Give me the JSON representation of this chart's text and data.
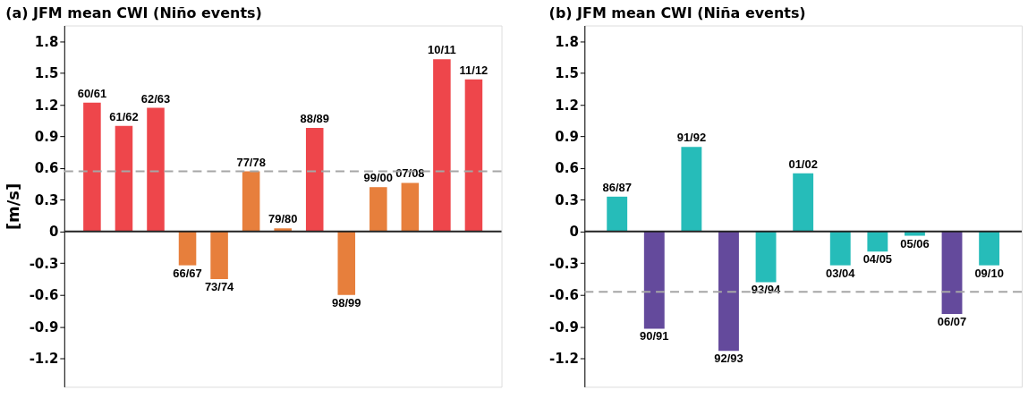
{
  "chart_data": [
    {
      "type": "bar",
      "title": "(a)  JFM mean CWI (Niño events)",
      "ylabel": "[m/s]",
      "categories": [
        "60/61",
        "61/62",
        "62/63",
        "66/67",
        "73/74",
        "77/78",
        "79/80",
        "88/89",
        "98/99",
        "99/00",
        "07/08",
        "10/11",
        "11/12"
      ],
      "values": [
        1.22,
        1.0,
        1.17,
        -0.32,
        -0.45,
        0.57,
        0.03,
        0.98,
        -0.6,
        0.42,
        0.46,
        1.63,
        1.44
      ],
      "colors": [
        "#ee464b",
        "#ee464b",
        "#ee464b",
        "#e77f3c",
        "#e77f3c",
        "#e77f3c",
        "#e77f3c",
        "#ee464b",
        "#e77f3c",
        "#e77f3c",
        "#e77f3c",
        "#ee464b",
        "#ee464b"
      ],
      "ylim": [
        -1.47,
        1.95
      ],
      "yticks": [
        -1.2,
        -0.9,
        -0.6,
        -0.3,
        0,
        0.3,
        0.6,
        0.9,
        1.2,
        1.5,
        1.8
      ],
      "ref_lines": [
        {
          "axis": "y",
          "value": 0.57,
          "color": "#a6a6a6",
          "line_style": "dashed"
        },
        {
          "axis": "y",
          "value": 0,
          "color": "#222222",
          "line_style": "solid"
        }
      ],
      "grid": false
    },
    {
      "type": "bar",
      "title": "(b)  JFM mean CWI (Niña events)",
      "categories": [
        "86/87",
        "90/91",
        "91/92",
        "92/93",
        "93/94",
        "01/02",
        "03/04",
        "04/05",
        "05/06",
        "06/07",
        "09/10"
      ],
      "values": [
        0.33,
        -0.92,
        0.8,
        -1.13,
        -0.48,
        0.55,
        -0.32,
        -0.19,
        -0.04,
        -0.78,
        -0.32
      ],
      "colors": [
        "#26bcb9",
        "#644a9c",
        "#26bcb9",
        "#644a9c",
        "#26bcb9",
        "#26bcb9",
        "#26bcb9",
        "#26bcb9",
        "#26bcb9",
        "#644a9c",
        "#26bcb9"
      ],
      "ylim": [
        -1.47,
        1.95
      ],
      "yticks": [
        -1.2,
        -0.9,
        -0.6,
        -0.3,
        0,
        0.3,
        0.6,
        0.9,
        1.2,
        1.5,
        1.8
      ],
      "ref_lines": [
        {
          "axis": "y",
          "value": -0.57,
          "color": "#a6a6a6",
          "line_style": "dashed"
        },
        {
          "axis": "y",
          "value": 0,
          "color": "#222222",
          "line_style": "solid"
        }
      ],
      "grid": false
    }
  ]
}
